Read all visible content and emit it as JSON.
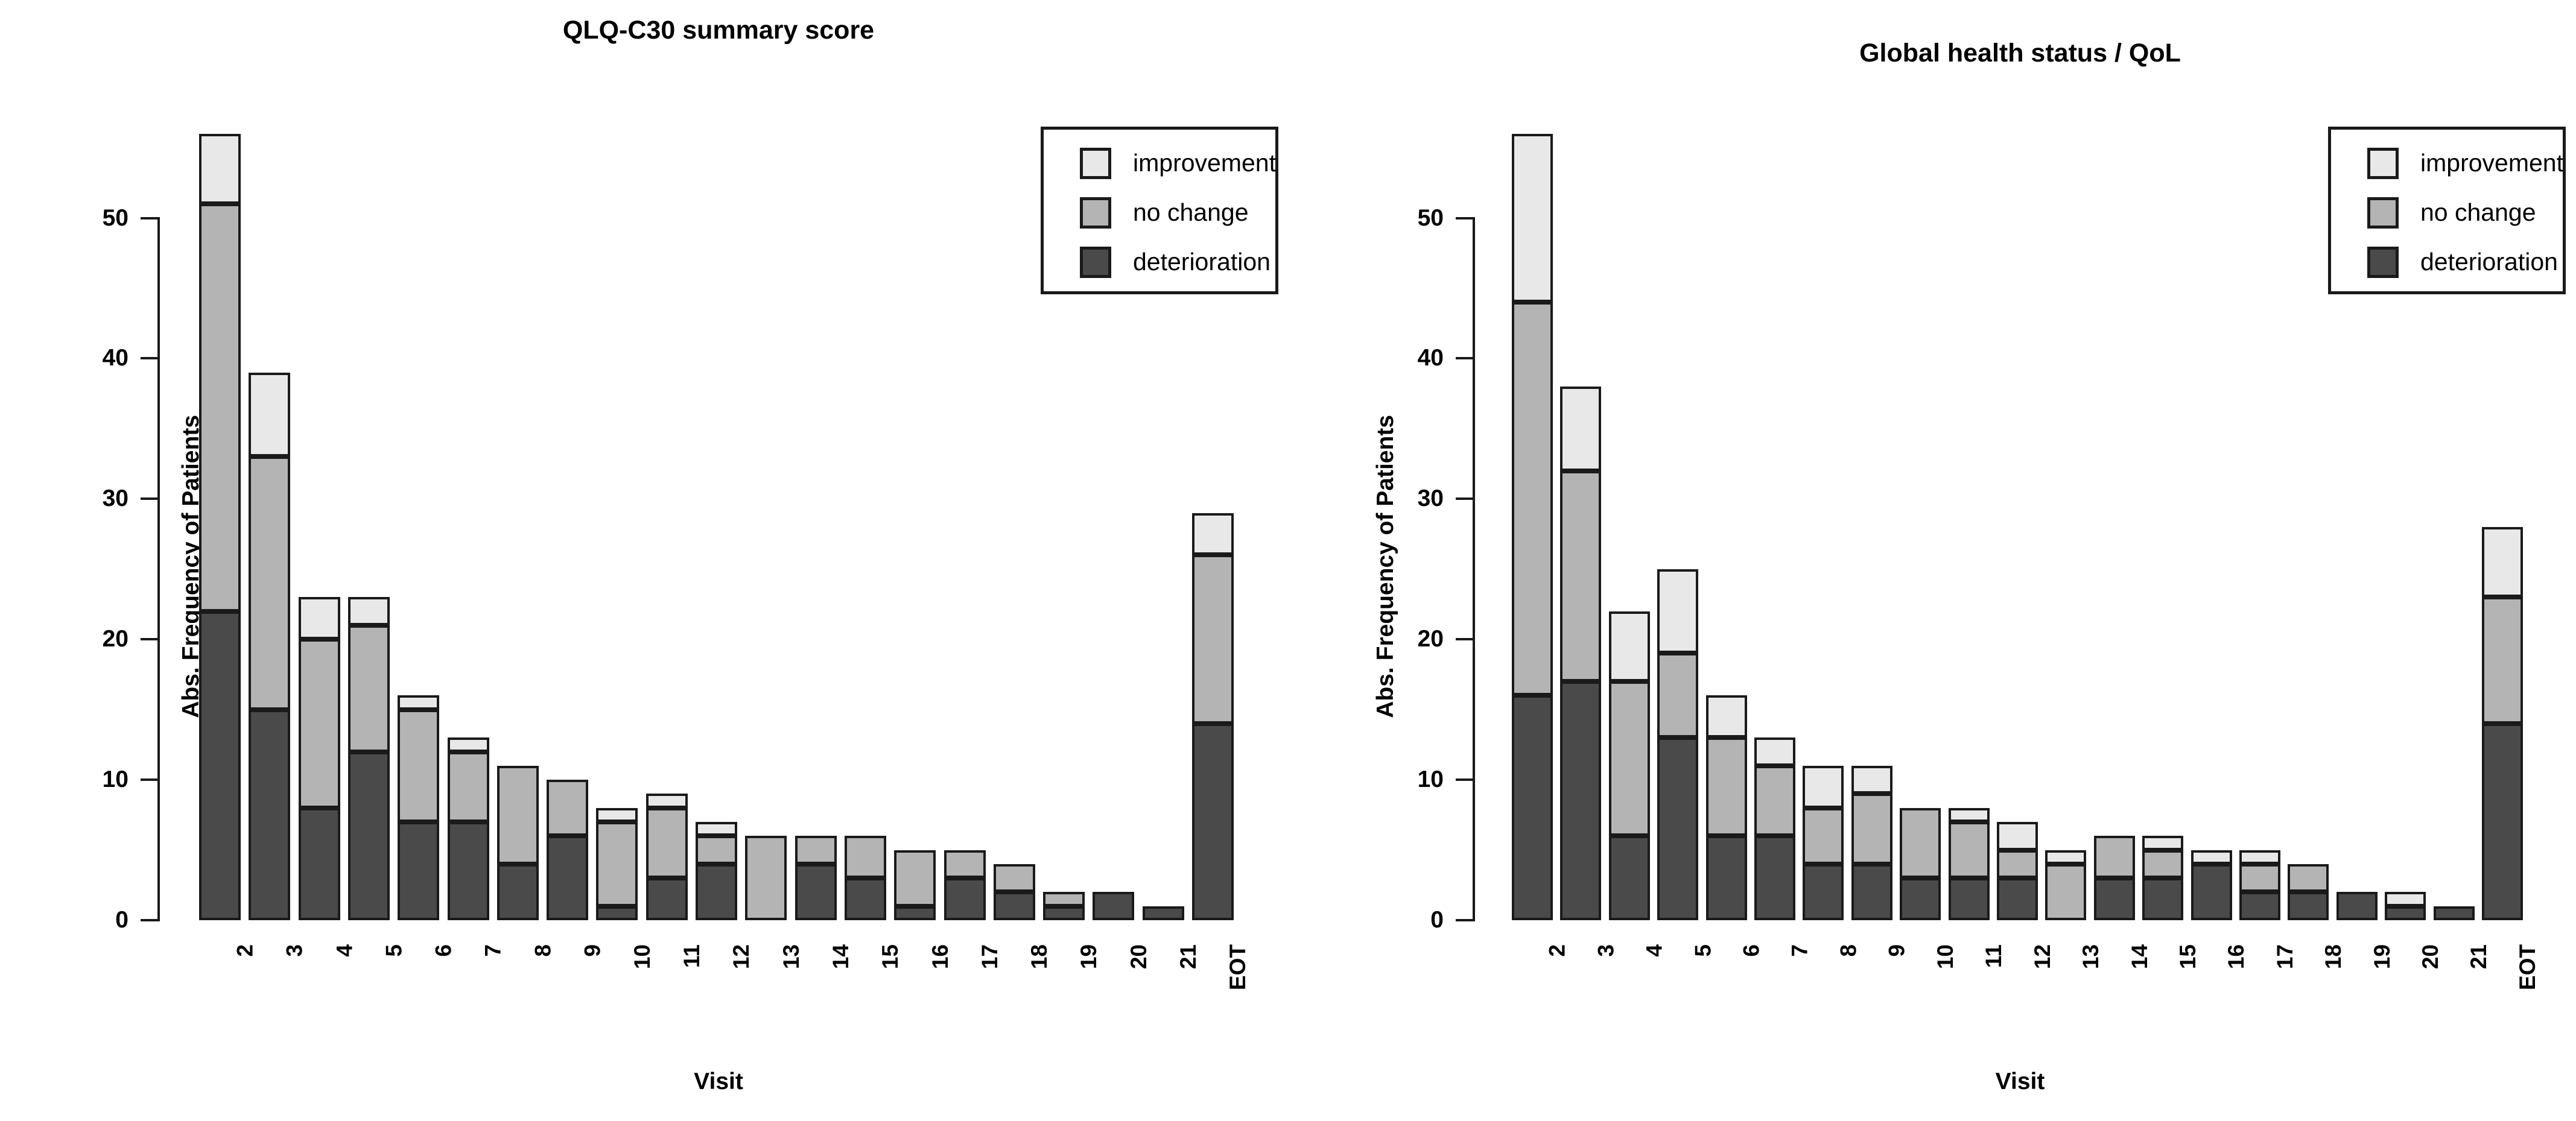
{
  "figure": {
    "background": "#ffffff",
    "border_color": "#1a1a1a"
  },
  "chart_data": [
    {
      "type": "bar",
      "stacked": true,
      "title": "QLQ-C30 summary score",
      "xlabel": "Visit",
      "ylabel": "Abs. Frequency of Patients",
      "ylim": [
        0,
        56
      ],
      "yticks": [
        0,
        10,
        20,
        30,
        40,
        50
      ],
      "grid": false,
      "legend_position": "topright",
      "legend": [
        "improvement",
        "no change",
        "deterioration"
      ],
      "categories": [
        "2",
        "3",
        "4",
        "5",
        "6",
        "7",
        "8",
        "9",
        "10",
        "11",
        "12",
        "13",
        "14",
        "15",
        "16",
        "17",
        "18",
        "19",
        "20",
        "21",
        "EOT"
      ],
      "series": [
        {
          "name": "deterioration",
          "color": "#4a4a4a",
          "values": [
            22,
            15,
            8,
            12,
            7,
            7,
            4,
            6,
            1,
            3,
            4,
            0,
            4,
            3,
            1,
            3,
            2,
            1,
            2,
            1,
            14
          ]
        },
        {
          "name": "no change",
          "color": "#b4b4b4",
          "values": [
            29,
            18,
            12,
            9,
            8,
            5,
            7,
            4,
            6,
            5,
            2,
            6,
            2,
            3,
            4,
            2,
            2,
            1,
            0,
            0,
            12
          ]
        },
        {
          "name": "improvement",
          "color": "#e8e8e8",
          "values": [
            5,
            6,
            3,
            2,
            1,
            1,
            0,
            0,
            1,
            1,
            1,
            0,
            0,
            0,
            0,
            0,
            0,
            0,
            0,
            0,
            3
          ]
        }
      ]
    },
    {
      "type": "bar",
      "stacked": true,
      "title": "Global health status / QoL",
      "xlabel": "Visit",
      "ylabel": "Abs. Frequency of Patients",
      "ylim": [
        0,
        56
      ],
      "yticks": [
        0,
        10,
        20,
        30,
        40,
        50
      ],
      "grid": false,
      "legend_position": "topright",
      "legend": [
        "improvement",
        "no change",
        "deterioration"
      ],
      "categories": [
        "2",
        "3",
        "4",
        "5",
        "6",
        "7",
        "8",
        "9",
        "10",
        "11",
        "12",
        "13",
        "14",
        "15",
        "16",
        "17",
        "18",
        "19",
        "20",
        "21",
        "EOT"
      ],
      "series": [
        {
          "name": "deterioration",
          "color": "#4a4a4a",
          "values": [
            16,
            17,
            6,
            13,
            6,
            6,
            4,
            4,
            3,
            3,
            3,
            0,
            3,
            3,
            4,
            2,
            2,
            2,
            1,
            1,
            14
          ]
        },
        {
          "name": "no change",
          "color": "#b4b4b4",
          "values": [
            28,
            15,
            11,
            6,
            7,
            5,
            4,
            5,
            5,
            4,
            2,
            4,
            3,
            2,
            0,
            2,
            2,
            0,
            0,
            0,
            9
          ]
        },
        {
          "name": "improvement",
          "color": "#e8e8e8",
          "values": [
            12,
            6,
            5,
            6,
            3,
            2,
            3,
            2,
            0,
            1,
            2,
            1,
            0,
            1,
            1,
            1,
            0,
            0,
            1,
            0,
            5
          ]
        }
      ]
    }
  ]
}
